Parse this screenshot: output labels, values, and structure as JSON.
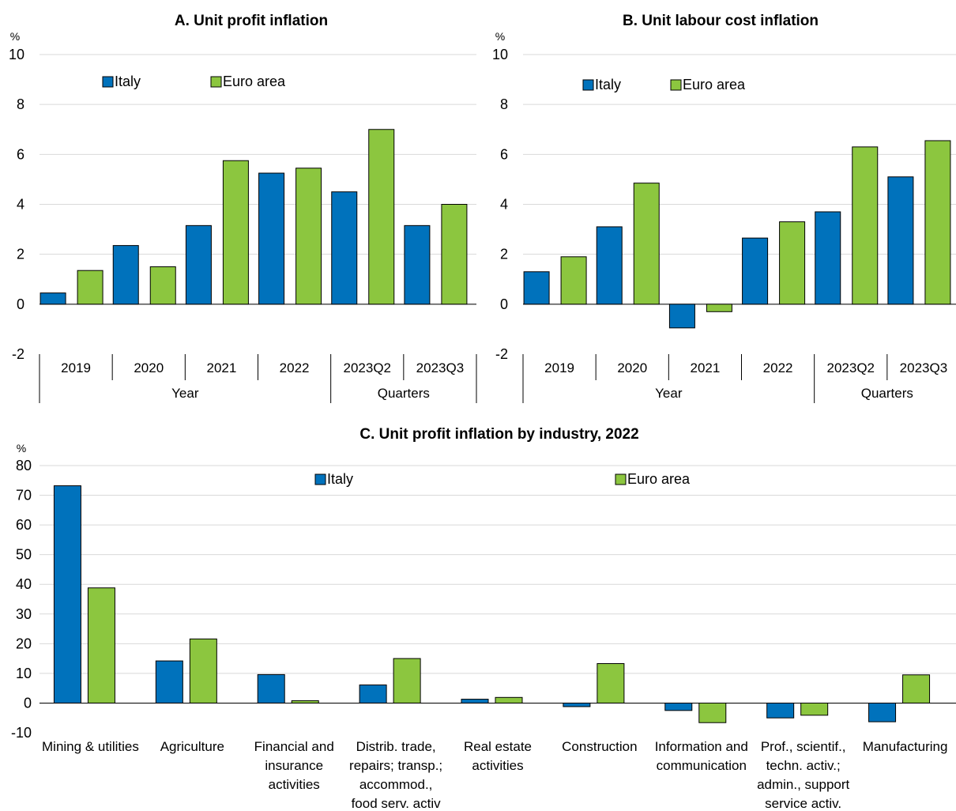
{
  "colors": {
    "italy": "#0072BC",
    "euro_area": "#8CC63F",
    "grid": "#D9D9D9",
    "axis": "#000000"
  },
  "chart_data": [
    {
      "type": "bar",
      "title": "A. Unit profit inflation",
      "unit": "%",
      "ylim": [
        -2,
        10
      ],
      "yticks": [
        "10",
        "8",
        "6",
        "4",
        "2",
        "0",
        "-2"
      ],
      "categories": [
        "2019",
        "2020",
        "2021",
        "2022",
        "2023Q2",
        "2023Q3"
      ],
      "groups": [
        "Year",
        "Quarters"
      ],
      "legend": {
        "italy": "Italy",
        "euro_area": "Euro area"
      },
      "series": [
        {
          "name": "Italy",
          "values": [
            0.45,
            2.35,
            3.15,
            5.25,
            4.5,
            3.15
          ]
        },
        {
          "name": "Euro area",
          "values": [
            1.35,
            1.5,
            5.75,
            5.45,
            7.0,
            4.0
          ]
        }
      ]
    },
    {
      "type": "bar",
      "title": "B. Unit labour cost inflation",
      "unit": "%",
      "ylim": [
        -2,
        10
      ],
      "yticks": [
        "10",
        "8",
        "6",
        "4",
        "2",
        "0",
        "-2"
      ],
      "categories": [
        "2019",
        "2020",
        "2021",
        "2022",
        "2023Q2",
        "2023Q3"
      ],
      "groups": [
        "Year",
        "Quarters"
      ],
      "legend": {
        "italy": "Italy",
        "euro_area": "Euro area"
      },
      "series": [
        {
          "name": "Italy",
          "values": [
            1.3,
            3.1,
            -0.95,
            2.65,
            3.7,
            5.1
          ]
        },
        {
          "name": "Euro area",
          "values": [
            1.9,
            4.85,
            -0.3,
            3.3,
            6.3,
            6.55
          ]
        }
      ]
    },
    {
      "type": "bar",
      "title": "C. Unit profit inflation by industry, 2022",
      "unit": "%",
      "ylim": [
        -10,
        80
      ],
      "yticks": [
        "80",
        "70",
        "60",
        "50",
        "40",
        "30",
        "20",
        "10",
        "0",
        "-10"
      ],
      "categories": [
        "Mining & utilities",
        "Agriculture",
        "Financial and\ninsurance\nactivities",
        "Distrib. trade,\nrepairs; transp.;\naccommod.,\nfood serv. activ",
        "Real estate\nactivities",
        "Construction",
        "Information and\ncommunication",
        "Prof., scientif.,\ntechn. activ.;\nadmin., support\nservice activ.",
        "Manufacturing"
      ],
      "legend": {
        "italy": "Italy",
        "euro_area": "Euro area"
      },
      "series": [
        {
          "name": "Italy",
          "values": [
            73.2,
            14.2,
            9.6,
            6.1,
            1.3,
            -1.2,
            -2.5,
            -5.0,
            -6.3
          ]
        },
        {
          "name": "Euro area",
          "values": [
            38.8,
            21.6,
            0.8,
            15.0,
            1.9,
            13.3,
            -6.6,
            -4.1,
            9.5
          ]
        }
      ]
    }
  ]
}
